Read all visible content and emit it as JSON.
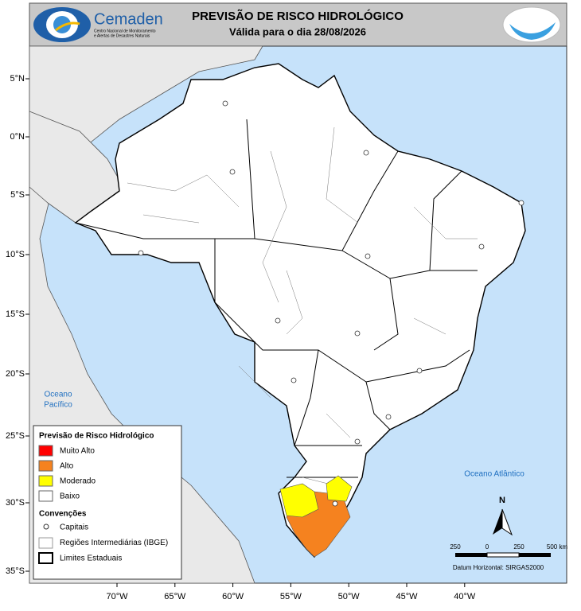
{
  "header": {
    "logo_name": "Cemaden",
    "logo_subtitle": [
      "Centro Nacional de Monitoramento",
      "e Alertas de Desastres Naturais"
    ],
    "title": "PREVISÃO DE RISCO HIDROLÓGICO",
    "subtitle": "Válida para o dia 28/08/2026"
  },
  "map": {
    "lat_labels": [
      "5°N",
      "0°N",
      "5°S",
      "10°S",
      "15°S",
      "20°S",
      "25°S",
      "30°S",
      "35°S"
    ],
    "lon_labels": [
      "70°W",
      "65°W",
      "60°W",
      "55°W",
      "50°W",
      "45°W",
      "40°W"
    ],
    "pacific_label": [
      "Oceano",
      "Pacífico"
    ],
    "atlantic_label": "Oceano Atlântico",
    "north": "N",
    "scale_labels": [
      "250",
      "0",
      "250",
      "500 km"
    ],
    "datum": "Datum Horizontal: SIRGAS2000"
  },
  "legend": {
    "title": "Previsão de Risco Hidrológico",
    "items": [
      {
        "label": "Muito Alto",
        "color": "#ff0000"
      },
      {
        "label": "Alto",
        "color": "#f5821f"
      },
      {
        "label": "Moderado",
        "color": "#ffff00"
      },
      {
        "label": "Baixo",
        "color": "#ffffff"
      }
    ],
    "conventions_title": "Convenções",
    "conventions": [
      "Capitais",
      "Regiões Intermediárias (IBGE)",
      "Limites Estaduais"
    ]
  }
}
